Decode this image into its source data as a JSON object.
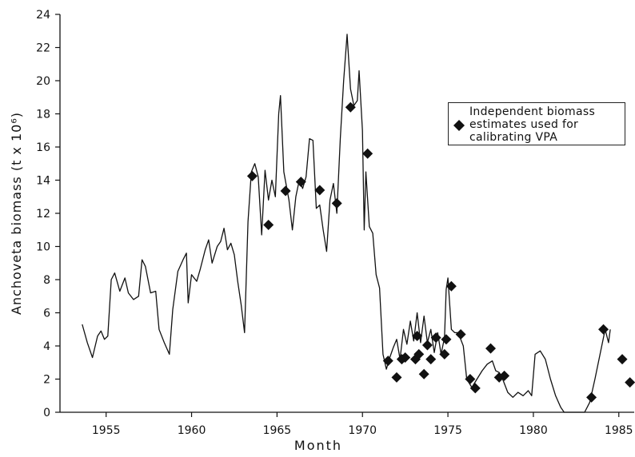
{
  "chart_data": {
    "type": "line",
    "x_label": "Month",
    "y_label": "Anchoveta biomass (t x 10⁶)",
    "xlim": [
      1952.3,
      1985.9
    ],
    "ylim": [
      0,
      24
    ],
    "xticks": [
      1955,
      1960,
      1965,
      1970,
      1975,
      1980,
      1985
    ],
    "yticks": [
      0,
      2,
      4,
      6,
      8,
      10,
      12,
      14,
      16,
      18,
      20,
      22,
      24
    ],
    "grid": false,
    "legend": "upper right",
    "series": [
      {
        "type": "line",
        "color": "#111111",
        "x": [
          1953.6,
          1953.9,
          1954.2,
          1954.5,
          1954.7,
          1954.9,
          1955.1,
          1955.3,
          1955.5,
          1955.8,
          1956.1,
          1956.3,
          1956.6,
          1956.9,
          1957.1,
          1957.3,
          1957.6,
          1957.9,
          1958.1,
          1958.4,
          1958.7,
          1958.9,
          1959.2,
          1959.5,
          1959.7,
          1959.8,
          1960.0,
          1960.3,
          1960.5,
          1960.8,
          1961.0,
          1961.2,
          1961.5,
          1961.7,
          1961.9,
          1962.1,
          1962.3,
          1962.5,
          1962.7,
          1962.9,
          1963.1,
          1963.3,
          1963.5,
          1963.7,
          1963.9,
          1964.1,
          1964.3,
          1964.5,
          1964.7,
          1964.9,
          1965.1,
          1965.2,
          1965.4,
          1965.7,
          1965.9,
          1966.1,
          1966.3,
          1966.5,
          1966.7,
          1966.9,
          1967.1,
          1967.3,
          1967.5,
          1967.7,
          1967.9,
          1968.1,
          1968.3,
          1968.5,
          1968.7,
          1968.9,
          1969.1,
          1969.3,
          1969.5,
          1969.7,
          1969.8,
          1970.0,
          1970.1,
          1970.2,
          1970.4,
          1970.6,
          1970.8,
          1971.0,
          1971.2,
          1971.4,
          1971.6,
          1971.8,
          1972.0,
          1972.2,
          1972.4,
          1972.6,
          1972.8,
          1973.0,
          1973.2,
          1973.4,
          1973.6,
          1973.8,
          1974.0,
          1974.2,
          1974.4,
          1974.6,
          1974.8,
          1974.9,
          1975.0,
          1975.2,
          1975.4,
          1975.6,
          1975.9,
          1976.1,
          1976.4,
          1976.7,
          1977.0,
          1977.3,
          1977.6,
          1977.8,
          1978.0,
          1978.2,
          1978.5,
          1978.8,
          1979.1,
          1979.4,
          1979.7,
          1979.9,
          1980.1,
          1980.4,
          1980.7,
          1981.0,
          1981.3,
          1981.6,
          1981.8,
          1983.0,
          1983.3,
          1983.6,
          1983.9,
          1984.2,
          1984.4,
          1984.5
        ],
        "values": [
          5.3,
          4.2,
          3.3,
          4.6,
          4.9,
          4.4,
          4.6,
          8.0,
          8.4,
          7.3,
          8.1,
          7.2,
          6.8,
          7.0,
          9.2,
          8.8,
          7.2,
          7.3,
          5.0,
          4.2,
          3.5,
          6.2,
          8.5,
          9.2,
          9.6,
          6.6,
          8.3,
          7.9,
          8.6,
          9.8,
          10.4,
          9.0,
          10.0,
          10.3,
          11.1,
          9.8,
          10.2,
          9.5,
          7.9,
          6.5,
          4.8,
          11.5,
          14.5,
          15.0,
          14.2,
          10.7,
          14.6,
          12.8,
          14.0,
          13.0,
          18.0,
          19.1,
          14.5,
          12.8,
          11.0,
          13.0,
          14.0,
          13.5,
          14.2,
          16.5,
          16.4,
          12.3,
          12.5,
          11.0,
          9.7,
          12.8,
          13.8,
          12.0,
          16.5,
          20.0,
          22.8,
          19.5,
          18.5,
          18.8,
          20.6,
          17.0,
          11.0,
          14.5,
          11.2,
          10.8,
          8.3,
          7.5,
          3.5,
          2.6,
          3.3,
          3.9,
          4.4,
          3.2,
          5.0,
          4.1,
          5.5,
          4.3,
          6.0,
          4.2,
          5.8,
          4.2,
          5.0,
          3.6,
          4.8,
          3.5,
          4.5,
          7.4,
          8.1,
          5.0,
          4.8,
          4.8,
          4.0,
          2.0,
          1.5,
          2.0,
          2.5,
          2.9,
          3.1,
          2.5,
          2.4,
          2.0,
          1.2,
          0.9,
          1.2,
          1.0,
          1.3,
          1.0,
          3.5,
          3.7,
          3.2,
          2.0,
          1.0,
          0.3,
          0,
          0,
          0.6,
          2.0,
          3.5,
          5.0,
          4.2,
          5.0
        ]
      },
      {
        "type": "scatter",
        "marker": "diamond",
        "color": "#111111",
        "name": "Independent biomass estimates used for calibrating VPA",
        "x": [
          1963.55,
          1964.5,
          1965.5,
          1966.4,
          1967.5,
          1968.5,
          1969.3,
          1970.3,
          1971.5,
          1972.0,
          1972.3,
          1972.5,
          1973.1,
          1973.2,
          1973.3,
          1973.6,
          1973.8,
          1974.0,
          1974.3,
          1974.8,
          1974.9,
          1975.2,
          1975.75,
          1976.3,
          1976.6,
          1977.5,
          1978.0,
          1978.3,
          1983.4,
          1984.1,
          1985.2,
          1985.65
        ],
        "values": [
          14.25,
          11.3,
          13.35,
          13.9,
          13.4,
          12.6,
          18.4,
          15.6,
          3.1,
          2.1,
          3.2,
          3.3,
          3.2,
          4.6,
          3.5,
          2.3,
          4.05,
          3.2,
          4.5,
          3.5,
          4.4,
          7.6,
          4.7,
          2.0,
          1.45,
          3.85,
          2.1,
          2.2,
          0.9,
          5.0,
          3.2,
          1.8
        ]
      }
    ]
  }
}
